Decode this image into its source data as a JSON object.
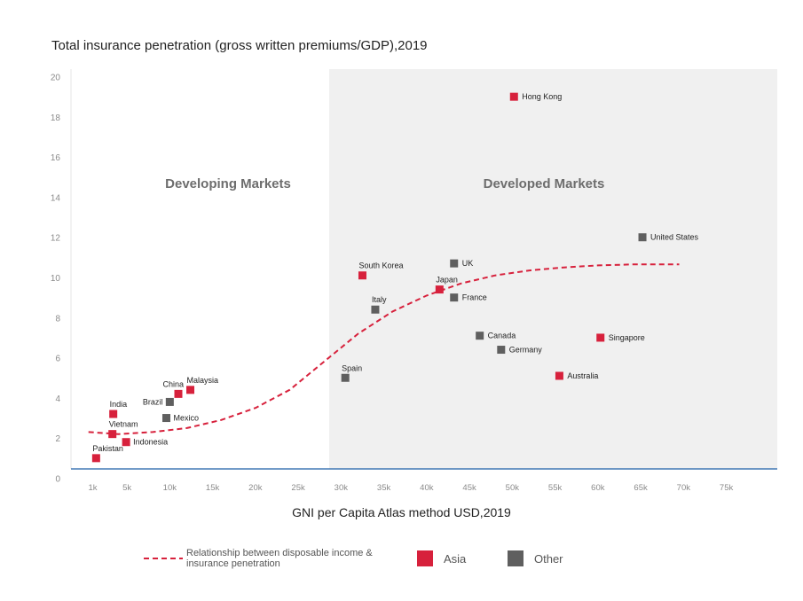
{
  "chart_data": {
    "type": "scatter",
    "title": "Total insurance penetration (gross written premiums/GDP),2019",
    "xlabel": "GNI per Capita Atlas method USD,2019",
    "ylabel": "",
    "ylim": [
      0,
      20
    ],
    "y_ticks": [
      0,
      2,
      4,
      6,
      8,
      10,
      12,
      14,
      16,
      18,
      20
    ],
    "x_ticks": [
      {
        "label": "1k",
        "value": 1
      },
      {
        "label": "5k",
        "value": 5
      },
      {
        "label": "10k",
        "value": 10
      },
      {
        "label": "15k",
        "value": 15
      },
      {
        "label": "20k",
        "value": 20
      },
      {
        "label": "25k",
        "value": 25
      },
      {
        "label": "30k",
        "value": 30
      },
      {
        "label": "35k",
        "value": 35
      },
      {
        "label": "40k",
        "value": 40
      },
      {
        "label": "45k",
        "value": 45
      },
      {
        "label": "50k",
        "value": 50
      },
      {
        "label": "55k",
        "value": 55
      },
      {
        "label": "60k",
        "value": 60
      },
      {
        "label": "65k",
        "value": 65
      },
      {
        "label": "70k",
        "value": 70
      },
      {
        "label": "75k",
        "value": 75
      }
    ],
    "regions": [
      {
        "name": "Developing Markets",
        "x_range": [
          0,
          28
        ]
      },
      {
        "name": "Developed Markets",
        "x_range": [
          28,
          78
        ]
      }
    ],
    "points": [
      {
        "name": "Pakistan",
        "x": 1.4,
        "y": 1.0,
        "group": "Asia"
      },
      {
        "name": "India",
        "x": 3.4,
        "y": 3.2,
        "group": "Asia"
      },
      {
        "name": "Vietnam",
        "x": 3.3,
        "y": 2.2,
        "group": "Asia"
      },
      {
        "name": "Indonesia",
        "x": 4.9,
        "y": 1.8,
        "group": "Asia"
      },
      {
        "name": "Brazil",
        "x": 10.0,
        "y": 3.8,
        "group": "Other"
      },
      {
        "name": "Mexico",
        "x": 9.6,
        "y": 3.0,
        "group": "Other"
      },
      {
        "name": "China",
        "x": 11.0,
        "y": 4.2,
        "group": "Asia"
      },
      {
        "name": "Malaysia",
        "x": 12.4,
        "y": 4.4,
        "group": "Asia"
      },
      {
        "name": "Spain",
        "x": 30.5,
        "y": 5.0,
        "group": "Other"
      },
      {
        "name": "South Korea",
        "x": 32.5,
        "y": 10.1,
        "group": "Asia"
      },
      {
        "name": "Italy",
        "x": 34.0,
        "y": 8.4,
        "group": "Other"
      },
      {
        "name": "Japan",
        "x": 41.5,
        "y": 9.4,
        "group": "Asia"
      },
      {
        "name": "UK",
        "x": 43.2,
        "y": 10.7,
        "group": "Other"
      },
      {
        "name": "France",
        "x": 43.2,
        "y": 9.0,
        "group": "Other"
      },
      {
        "name": "Canada",
        "x": 46.2,
        "y": 7.1,
        "group": "Other"
      },
      {
        "name": "Germany",
        "x": 48.7,
        "y": 6.4,
        "group": "Other"
      },
      {
        "name": "Hong Kong",
        "x": 50.2,
        "y": 19.0,
        "group": "Asia"
      },
      {
        "name": "Australia",
        "x": 55.5,
        "y": 5.1,
        "group": "Asia"
      },
      {
        "name": "Singapore",
        "x": 60.3,
        "y": 7.0,
        "group": "Asia"
      },
      {
        "name": "United States",
        "x": 65.2,
        "y": 12.0,
        "group": "Other"
      }
    ],
    "trend": [
      {
        "x": 0.5,
        "y": 2.3
      },
      {
        "x": 4,
        "y": 2.2
      },
      {
        "x": 8,
        "y": 2.3
      },
      {
        "x": 12,
        "y": 2.5
      },
      {
        "x": 16,
        "y": 2.9
      },
      {
        "x": 20,
        "y": 3.5
      },
      {
        "x": 24,
        "y": 4.4
      },
      {
        "x": 28,
        "y": 5.8
      },
      {
        "x": 32,
        "y": 7.2
      },
      {
        "x": 36,
        "y": 8.3
      },
      {
        "x": 40,
        "y": 9.1
      },
      {
        "x": 44,
        "y": 9.7
      },
      {
        "x": 48,
        "y": 10.1
      },
      {
        "x": 52,
        "y": 10.35
      },
      {
        "x": 56,
        "y": 10.5
      },
      {
        "x": 60,
        "y": 10.6
      },
      {
        "x": 64,
        "y": 10.65
      },
      {
        "x": 69.5,
        "y": 10.65
      }
    ],
    "legend": [
      {
        "label": "Relationship between disposable income & insurance penetration",
        "kind": "dashed-line",
        "color": "#d7213c"
      },
      {
        "label": "Asia",
        "kind": "square",
        "color": "#d7213c"
      },
      {
        "label": "Other",
        "kind": "square",
        "color": "#5f5f5f"
      }
    ],
    "colors": {
      "asia": "#d7213c",
      "other": "#5f5f5f",
      "developed_bg": "#f0f0f0",
      "axis": "#1f5fa8"
    }
  }
}
